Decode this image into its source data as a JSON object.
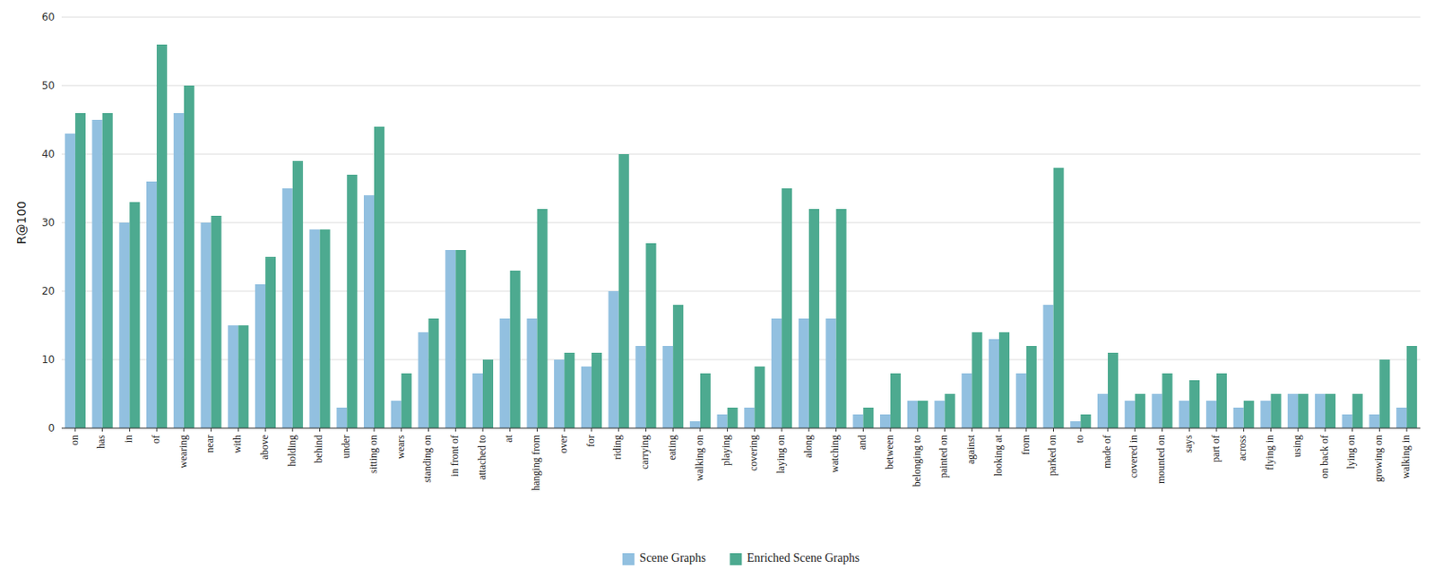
{
  "chart_data": {
    "type": "bar",
    "categories": [
      "on",
      "has",
      "in",
      "of",
      "wearing",
      "near",
      "with",
      "above",
      "holding",
      "behind",
      "under",
      "sitting on",
      "wears",
      "standing on",
      "in front of",
      "attached to",
      "at",
      "hanging from",
      "over",
      "for",
      "riding",
      "carrying",
      "eating",
      "walking on",
      "playing",
      "covering",
      "laying on",
      "along",
      "watching",
      "and",
      "between",
      "belonging to",
      "painted on",
      "against",
      "looking at",
      "from",
      "parked on",
      "to",
      "made of",
      "covered in",
      "mounted on",
      "says",
      "part of",
      "across",
      "flying in",
      "using",
      "on back of",
      "lying on",
      "growing on",
      "walking in"
    ],
    "series": [
      {
        "name": "Scene Graphs",
        "color": "#92C0E0",
        "values": [
          43,
          45,
          30,
          36,
          46,
          30,
          15,
          21,
          35,
          29,
          3,
          34,
          4,
          14,
          26,
          8,
          16,
          16,
          10,
          9,
          20,
          12,
          12,
          1,
          2,
          3,
          16,
          16,
          16,
          2,
          2,
          4,
          4,
          8,
          13,
          8,
          18,
          1,
          5,
          4,
          5,
          4,
          4,
          3,
          4,
          5,
          5,
          2,
          2,
          3
        ]
      },
      {
        "name": "Enriched Scene Graphs",
        "color": "#4DAA90",
        "values": [
          46,
          46,
          33,
          56,
          50,
          31,
          15,
          25,
          39,
          29,
          37,
          44,
          8,
          16,
          26,
          10,
          23,
          32,
          11,
          11,
          40,
          27,
          18,
          8,
          3,
          9,
          35,
          32,
          32,
          3,
          8,
          4,
          5,
          14,
          14,
          12,
          38,
          2,
          11,
          5,
          8,
          7,
          8,
          4,
          5,
          5,
          5,
          5,
          10,
          12
        ]
      }
    ],
    "ylabel": "R@100",
    "ylim": [
      0,
      60
    ],
    "yticks": [
      0,
      10,
      20,
      30,
      40,
      50,
      60
    ],
    "grid": true,
    "legend": "bottom"
  }
}
